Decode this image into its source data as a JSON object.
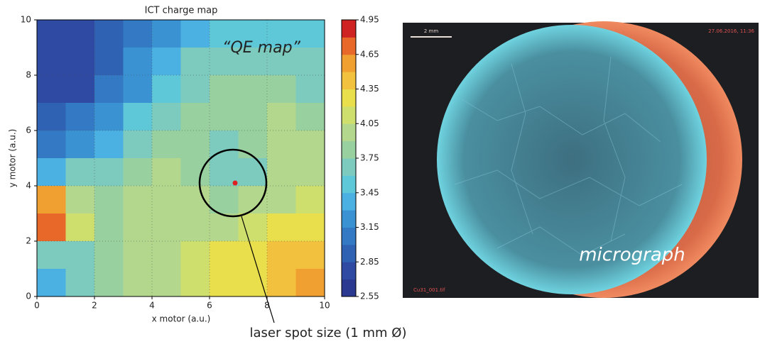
{
  "chart_data": {
    "type": "contour",
    "title": "ICT charge map",
    "x_label": "x motor  (a.u.)",
    "y_label": "y motor  (a.u.)",
    "x": [
      0.5,
      1.5,
      2.5,
      3.5,
      4.5,
      5.5,
      6.5,
      7.5,
      8.5,
      9.5
    ],
    "y": [
      9.5,
      8.5,
      7.5,
      6.5,
      5.5,
      4.5,
      3.5,
      2.5,
      1.5,
      0.5
    ],
    "z": [
      [
        2.7,
        2.7,
        2.9,
        3.1,
        3.3,
        3.4,
        3.5,
        3.5,
        3.5,
        3.5
      ],
      [
        2.7,
        2.8,
        2.9,
        3.2,
        3.4,
        3.6,
        3.7,
        3.7,
        3.7,
        3.6
      ],
      [
        2.8,
        2.8,
        3.0,
        3.3,
        3.5,
        3.7,
        3.8,
        3.8,
        3.8,
        3.7
      ],
      [
        2.9,
        3.0,
        3.2,
        3.5,
        3.7,
        3.8,
        3.8,
        3.8,
        3.9,
        3.8
      ],
      [
        3.0,
        3.2,
        3.4,
        3.6,
        3.8,
        3.8,
        3.7,
        3.8,
        3.9,
        3.9
      ],
      [
        3.4,
        3.6,
        3.7,
        3.8,
        3.9,
        3.8,
        3.6,
        3.7,
        3.9,
        4.0
      ],
      [
        4.5,
        4.0,
        3.8,
        3.9,
        3.9,
        3.9,
        3.8,
        3.9,
        4.0,
        4.1
      ],
      [
        4.8,
        4.1,
        3.8,
        3.9,
        4.0,
        4.0,
        4.0,
        4.1,
        4.2,
        4.2
      ],
      [
        3.6,
        3.7,
        3.8,
        3.9,
        4.0,
        4.1,
        4.2,
        4.3,
        4.4,
        4.4
      ],
      [
        3.4,
        3.6,
        3.8,
        3.9,
        4.0,
        4.1,
        4.2,
        4.3,
        4.4,
        4.5
      ]
    ],
    "xlim": [
      0,
      10
    ],
    "ylim": [
      0,
      10
    ],
    "xticks": [
      0,
      2,
      4,
      6,
      8,
      10
    ],
    "yticks": [
      0,
      2,
      4,
      6,
      8,
      10
    ],
    "clim": [
      2.55,
      4.95
    ],
    "cticks": [
      2.55,
      2.85,
      3.15,
      3.45,
      3.75,
      4.05,
      4.35,
      4.65,
      4.95
    ],
    "colors": [
      "#2b3990",
      "#2e4aa3",
      "#2f62b3",
      "#3379c3",
      "#3b92d2",
      "#4bb0e2",
      "#5ec7d8",
      "#7dcbbe",
      "#98d0a0",
      "#b3d78c",
      "#cfdf6e",
      "#e9df4c",
      "#f2c23e",
      "#f0a030",
      "#e8682a",
      "#cf2222"
    ],
    "grid": true
  },
  "annotations": {
    "qe_map": "“QE map”",
    "laser_spot": "laser spot size (1 mm Ø)"
  },
  "micrograph": {
    "label": "micrograph",
    "scale_bar": "2 mm",
    "timestamp": "27.06.2016, 11:36",
    "filename": "Cu31_001.tif"
  }
}
